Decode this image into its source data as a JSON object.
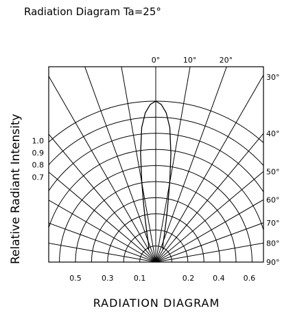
{
  "chart_data": {
    "type": "polar",
    "title": "Radiation Diagram  Ta=25°",
    "ylabel": "Relative Radiant Intensity",
    "xlabel": "RADIATION DIAGRAM",
    "radial_range": [
      0,
      1.0
    ],
    "radial_ticks": [
      0.1,
      0.2,
      0.3,
      0.4,
      0.5,
      0.6,
      0.7,
      0.8,
      0.9,
      1.0
    ],
    "left_scale_labels": [
      "1.0",
      "0.9",
      "0.8",
      "0.7"
    ],
    "bottom_left_labels": [
      "0.5",
      "0.3",
      "0.1"
    ],
    "bottom_right_labels": [
      "0.2",
      "0.4",
      "0.6"
    ],
    "angle_labels_top": [
      "0°",
      "10°",
      "20°"
    ],
    "angle_labels_right": [
      "30°",
      "40°",
      "50°",
      "60°",
      "70°",
      "80°",
      "90°"
    ],
    "angle_spokes_deg": [
      0,
      10,
      20,
      30,
      40,
      50,
      60,
      70,
      80,
      90
    ],
    "grid": true,
    "series": [
      {
        "angles_deg": [
          0,
          2,
          4,
          6,
          8,
          10,
          12,
          14,
          16,
          18,
          20,
          22,
          24,
          26,
          28,
          30
        ],
        "values": [
          1.0,
          0.98,
          0.93,
          0.84,
          0.68,
          0.5,
          0.36,
          0.27,
          0.21,
          0.17,
          0.14,
          0.12,
          0.11,
          0.1,
          0.095,
          0.09
        ]
      }
    ]
  }
}
